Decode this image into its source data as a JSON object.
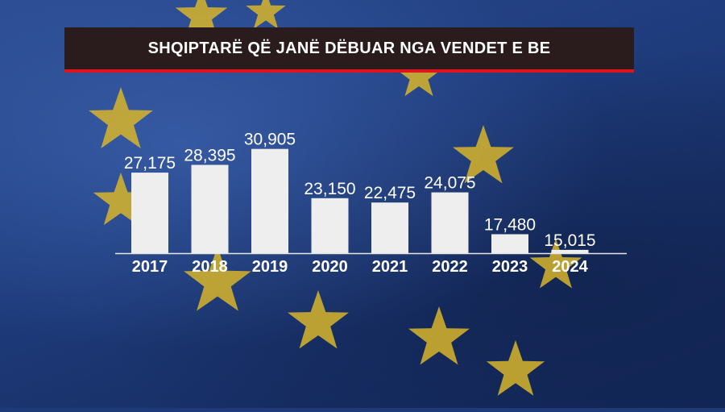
{
  "title": "SHQIPTARË QË JANË DËBUAR NGA VENDET E BE",
  "colors": {
    "title_bg": "#2a1b1c",
    "title_accent": "#e0141c",
    "bar": "#eeeeee",
    "star": "#d8b52a",
    "background": "#1f3d7e"
  },
  "chart_data": {
    "type": "bar",
    "title": "SHQIPTARË QË JANË DËBUAR NGA VENDET E BE",
    "categories": [
      "2017",
      "2018",
      "2019",
      "2020",
      "2021",
      "2022",
      "2023",
      "2024"
    ],
    "values": [
      27175,
      28395,
      30905,
      23150,
      22475,
      24075,
      17480,
      15015
    ],
    "value_labels": [
      "27,175",
      "28,395",
      "30,905",
      "23,150",
      "22,475",
      "24,075",
      "17,480",
      "15,015"
    ],
    "xlabel": "",
    "ylabel": "",
    "ylim": [
      14500,
      31000
    ],
    "grid": false
  }
}
